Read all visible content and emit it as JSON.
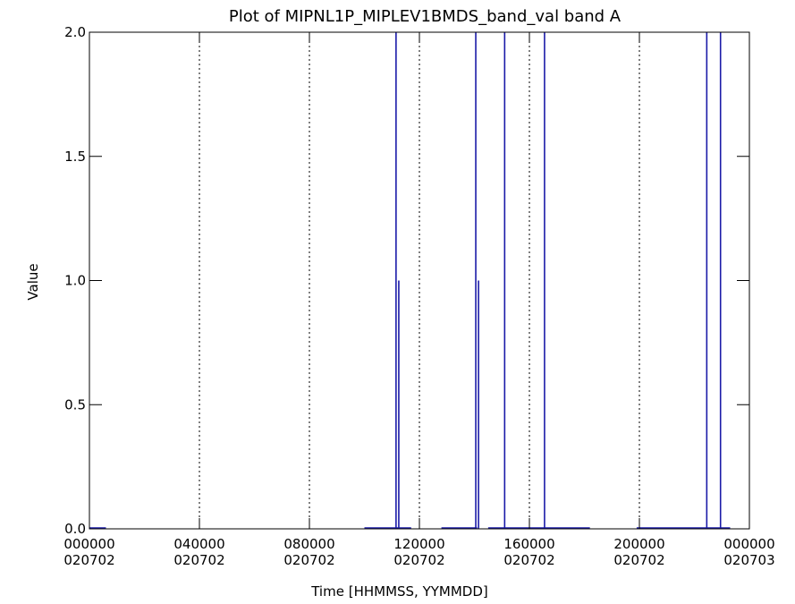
{
  "chart_data": {
    "type": "line",
    "title": "Plot of MIPNL1P_MIPLEV1BMDS_band_val band A",
    "xlabel": "Time [HHMMSS, YYMMDD]",
    "ylabel": "Value",
    "xlim": [
      0,
      24
    ],
    "ylim": [
      0,
      2
    ],
    "grid": "vertical dotted",
    "colors": {
      "series": "#1a1aa8",
      "axes": "#000000",
      "grid": "#000000"
    },
    "x_ticks": [
      {
        "x": 0,
        "time": "000000",
        "date": "020702"
      },
      {
        "x": 4,
        "time": "040000",
        "date": "020702"
      },
      {
        "x": 8,
        "time": "080000",
        "date": "020702"
      },
      {
        "x": 12,
        "time": "120000",
        "date": "020702"
      },
      {
        "x": 16,
        "time": "160000",
        "date": "020702"
      },
      {
        "x": 20,
        "time": "200000",
        "date": "020702"
      },
      {
        "x": 24,
        "time": "000000",
        "date": "020703"
      }
    ],
    "y_ticks": [
      {
        "y": 0.0,
        "label": "0.0"
      },
      {
        "y": 0.5,
        "label": "0.5"
      },
      {
        "y": 1.0,
        "label": "1.0"
      },
      {
        "y": 1.5,
        "label": "1.5"
      },
      {
        "y": 2.0,
        "label": "2.0"
      }
    ],
    "grid_x": [
      4,
      8,
      12,
      16,
      20
    ],
    "series_segments": [
      {
        "x0": 0.0,
        "x1": 0.6,
        "y": 0
      },
      {
        "x0": 10.0,
        "x1": 11.7,
        "y": 0
      },
      {
        "x0": 12.8,
        "x1": 14.1,
        "y": 0
      },
      {
        "x0": 14.5,
        "x1": 18.2,
        "y": 0
      },
      {
        "x0": 19.9,
        "x1": 23.3,
        "y": 0
      }
    ],
    "spikes": [
      {
        "x": 11.15,
        "y": 2.0
      },
      {
        "x": 11.25,
        "y": 1.0
      },
      {
        "x": 14.05,
        "y": 2.0
      },
      {
        "x": 14.15,
        "y": 1.0
      },
      {
        "x": 15.1,
        "y": 2.0
      },
      {
        "x": 16.55,
        "y": 2.0
      },
      {
        "x": 22.45,
        "y": 2.0
      },
      {
        "x": 22.95,
        "y": 2.0
      }
    ]
  }
}
